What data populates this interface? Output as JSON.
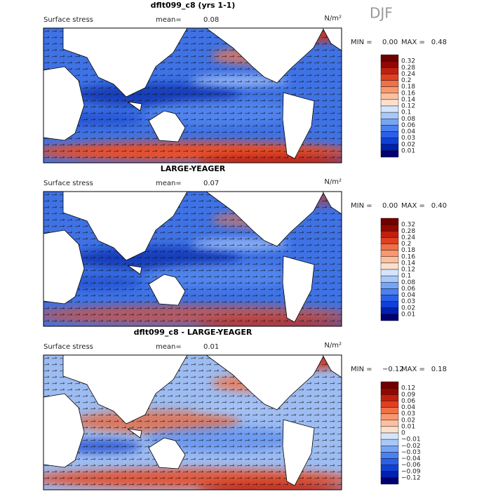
{
  "season": "DJF",
  "panels": [
    {
      "title": "dflt099_c8 (yrs 1-1)",
      "field": "Surface stress",
      "mean_label": "mean=",
      "mean": "0.08",
      "units": "N/m²",
      "min_label": "MIN =",
      "min": "0.00",
      "max_label": "MAX =",
      "max": "0.48",
      "colorbar": [
        "0.32",
        "0.28",
        "0.24",
        "0.2",
        "0.18",
        "0.16",
        "0.14",
        "0.12",
        "0.1",
        "0.08",
        "0.06",
        "0.04",
        "0.03",
        "0.02",
        "0.01"
      ]
    },
    {
      "title": "LARGE-YEAGER",
      "field": "Surface stress",
      "mean_label": "mean=",
      "mean": "0.07",
      "units": "N/m²",
      "min_label": "MIN =",
      "min": "0.00",
      "max_label": "MAX =",
      "max": "0.40",
      "colorbar": [
        "0.32",
        "0.28",
        "0.24",
        "0.2",
        "0.18",
        "0.16",
        "0.14",
        "0.12",
        "0.1",
        "0.08",
        "0.06",
        "0.04",
        "0.03",
        "0.02",
        "0.01"
      ]
    },
    {
      "title": "dflt099_c8 - LARGE-YEAGER",
      "field": "Surface stress",
      "mean_label": "mean=",
      "mean": "0.01",
      "units": "N/m²",
      "min_label": "MIN =",
      "min": "−0.12",
      "max_label": "MAX =",
      "max": "0.18",
      "colorbar": [
        "0.12",
        "0.09",
        "0.06",
        "0.04",
        "0.03",
        "0.02",
        "0.01",
        "0",
        "−0.01",
        "−0.02",
        "−0.03",
        "−0.04",
        "−0.06",
        "−0.09",
        "−0.12"
      ]
    }
  ]
}
